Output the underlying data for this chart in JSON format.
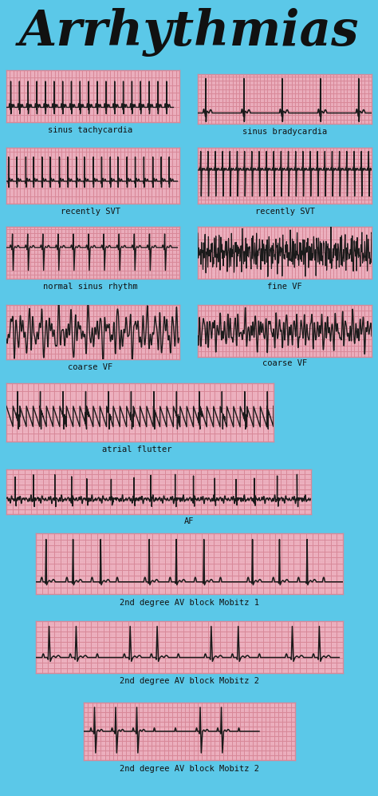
{
  "title": "Arrhythmias",
  "bg_color": "#5BC8E8",
  "ecg_bg": "#F2B8C6",
  "ecg_grid_major": "#D88898",
  "ecg_grid_minor": "#E8A8B8",
  "ecg_line": "#1a1a1a",
  "title_color": "#111111",
  "label_color": "#111111",
  "panels": [
    {
      "label": "sinus tachycardia",
      "col": 0,
      "wide": false
    },
    {
      "label": "sinus bradycardia",
      "col": 1,
      "wide": false
    },
    {
      "label": "recently SVT",
      "col": 0,
      "wide": false
    },
    {
      "label": "recently SVT",
      "col": 1,
      "wide": false
    },
    {
      "label": "normal sinus rhythm",
      "col": 0,
      "wide": false
    },
    {
      "label": "fine VF",
      "col": 1,
      "wide": false
    },
    {
      "label": "coarse VF",
      "col": 0,
      "wide": false
    },
    {
      "label": "coarse VF",
      "col": 1,
      "wide": false
    },
    {
      "label": "atrial flutter",
      "col": 0,
      "wide": true
    },
    {
      "label": "AF",
      "col": 0,
      "wide": true
    },
    {
      "label": "2nd degree AV block Mobitz 1",
      "col": 0,
      "wide": true
    },
    {
      "label": "2nd degree AV block Mobitz 2",
      "col": 0,
      "wide": true
    },
    {
      "label": "2nd degree AV block Mobitz 2",
      "col": 0,
      "wide": true
    }
  ]
}
